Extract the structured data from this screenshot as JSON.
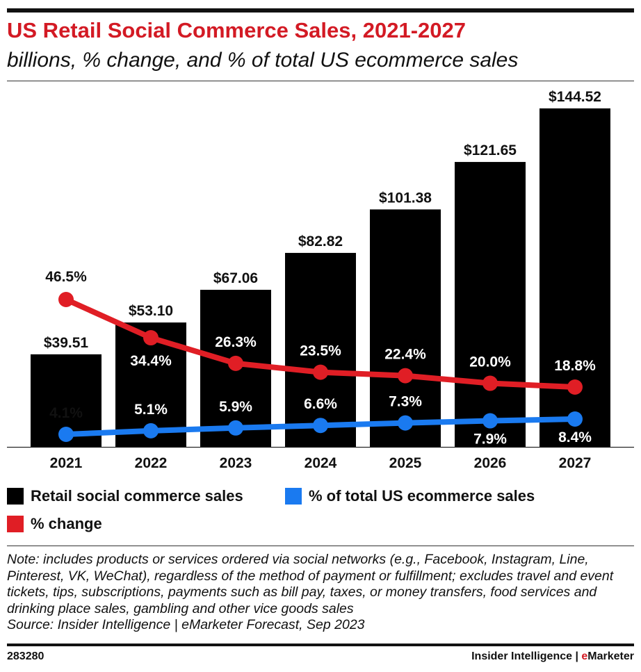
{
  "header": {
    "title": "US Retail Social Commerce Sales, 2021-2027",
    "subtitle": "billions, % change, and % of total US ecommerce sales"
  },
  "colors": {
    "bars": "#000000",
    "change": "#e01e25",
    "share": "#1a7af0",
    "accent": "#d31a24"
  },
  "chart_data": {
    "type": "bar",
    "categories": [
      "2021",
      "2022",
      "2023",
      "2024",
      "2025",
      "2026",
      "2027"
    ],
    "series": [
      {
        "name": "Retail social commerce sales",
        "type": "bar",
        "values": [
          39.51,
          53.1,
          67.06,
          82.82,
          101.38,
          121.65,
          144.52
        ],
        "labels": [
          "$39.51",
          "$53.10",
          "$67.06",
          "$82.82",
          "$101.38",
          "$121.65",
          "$144.52"
        ]
      },
      {
        "name": "% change",
        "type": "line",
        "values": [
          46.5,
          34.4,
          26.3,
          23.5,
          22.4,
          20.0,
          18.8
        ],
        "labels": [
          "46.5%",
          "34.4%",
          "26.3%",
          "23.5%",
          "22.4%",
          "20.0%",
          "18.8%"
        ]
      },
      {
        "name": "% of total US ecommerce sales",
        "type": "line",
        "values": [
          4.1,
          5.1,
          5.9,
          6.6,
          7.3,
          7.9,
          8.4
        ],
        "labels": [
          "4.1%",
          "5.1%",
          "5.9%",
          "6.6%",
          "7.3%",
          "7.9%",
          "8.4%"
        ]
      }
    ],
    "ylim": [
      0,
      150
    ],
    "legend": [
      "Retail social commerce sales",
      "% of total US ecommerce sales",
      "% change"
    ]
  },
  "legend": {
    "sales": "Retail social commerce sales",
    "share": "% of total US ecommerce sales",
    "change": "% change"
  },
  "note": {
    "text": "Note: includes products or services ordered via social networks (e.g., Facebook, Instagram, Line, Pinterest, VK, WeChat), regardless of the method of payment or fulfillment; excludes travel and event tickets, tips, subscriptions, payments such as bill pay, taxes, or money transfers, food services and drinking place sales, gambling and other vice goods sales",
    "source": "Source: Insider Intelligence | eMarketer Forecast, Sep 2023"
  },
  "footer": {
    "chart_id": "283280",
    "brand_prefix": "Insider Intelligence | ",
    "brand_highlight": "e",
    "brand_suffix": "Marketer"
  }
}
